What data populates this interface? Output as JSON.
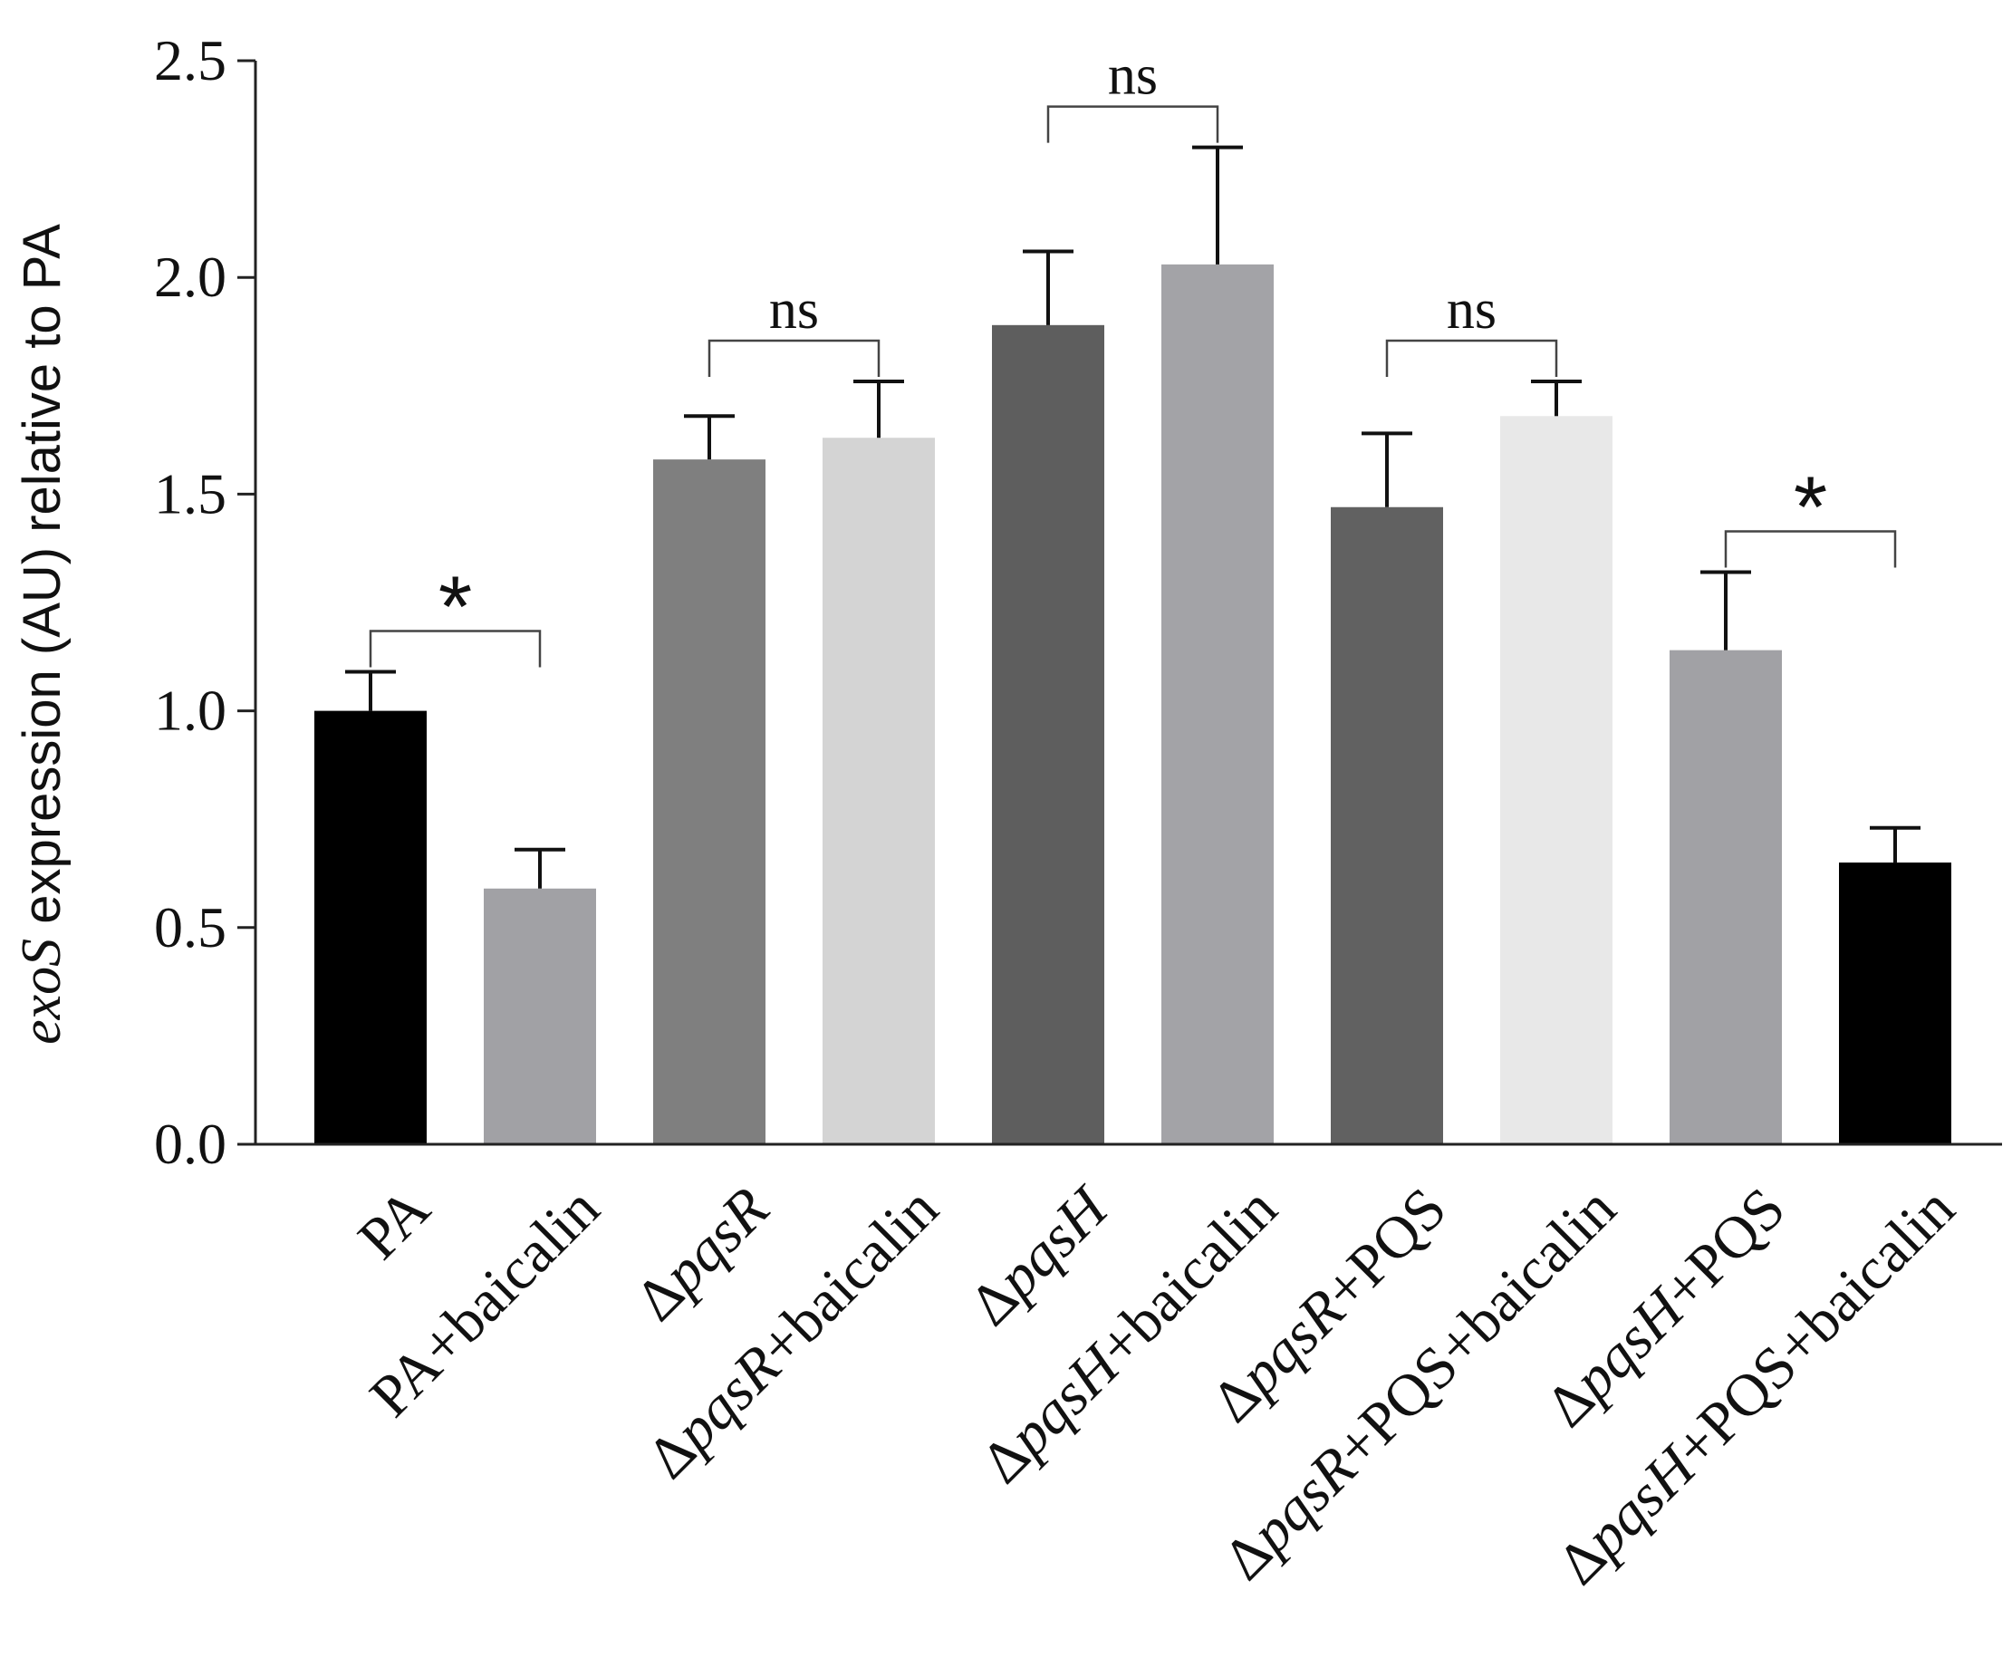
{
  "chart_data": {
    "type": "bar",
    "title": "",
    "xlabel": "",
    "ylabel": {
      "italic": "exoS",
      "rest": " expression (AU) relative to PA"
    },
    "ylim": [
      0,
      2.5
    ],
    "yticks": [
      "0.0",
      "0.5",
      "1.0",
      "1.5",
      "2.0",
      "2.5"
    ],
    "ytick_values": [
      0,
      0.5,
      1.0,
      1.5,
      2.0,
      2.5
    ],
    "categories": [
      "PA",
      "PA+baicalin",
      "ΔpqsR",
      "ΔpqsR+baicalin",
      "ΔpqsH",
      "ΔpqsH+baicalin",
      "ΔpqsR+PQS",
      "ΔpqsR+PQS+baicalin",
      "ΔpqsH+PQS",
      "ΔpqsH+PQS+baicalin"
    ],
    "category_parts": [
      [
        {
          "t": "PA",
          "i": false
        }
      ],
      [
        {
          "t": "PA+baicalin",
          "i": false
        }
      ],
      [
        {
          "t": "Δ",
          "i": false
        },
        {
          "t": "pqsR",
          "i": true
        }
      ],
      [
        {
          "t": "Δ",
          "i": false
        },
        {
          "t": "pqsR",
          "i": true
        },
        {
          "t": "+baicalin",
          "i": false
        }
      ],
      [
        {
          "t": "Δ",
          "i": false
        },
        {
          "t": "pqsH",
          "i": true
        }
      ],
      [
        {
          "t": "Δ",
          "i": false
        },
        {
          "t": "pqsH",
          "i": true
        },
        {
          "t": "+baicalin",
          "i": false
        }
      ],
      [
        {
          "t": "Δ",
          "i": false
        },
        {
          "t": "pqsR",
          "i": true
        },
        {
          "t": "+PQS",
          "i": false
        }
      ],
      [
        {
          "t": "Δ",
          "i": false
        },
        {
          "t": "pqsR",
          "i": true
        },
        {
          "t": "+PQS+baicalin",
          "i": false
        }
      ],
      [
        {
          "t": "Δ",
          "i": false
        },
        {
          "t": "pqsH",
          "i": true
        },
        {
          "t": "+PQS",
          "i": false
        }
      ],
      [
        {
          "t": "Δ",
          "i": false
        },
        {
          "t": "pqsH",
          "i": true
        },
        {
          "t": "+PQS+baicalin",
          "i": false
        }
      ]
    ],
    "values": [
      1.0,
      0.59,
      1.58,
      1.63,
      1.89,
      2.03,
      1.47,
      1.68,
      1.14,
      0.65
    ],
    "errors": [
      0.09,
      0.09,
      0.1,
      0.13,
      0.17,
      0.27,
      0.17,
      0.08,
      0.18,
      0.08
    ],
    "colors": [
      "#000000",
      "#a1a1a5",
      "#7f7f7f",
      "#d4d4d4",
      "#5e5e5e",
      "#a3a3a7",
      "#616161",
      "#e8e8e8",
      "#a1a1a5",
      "#000000"
    ],
    "comparisons": [
      {
        "from": 0,
        "to": 1,
        "label": "*"
      },
      {
        "from": 2,
        "to": 3,
        "label": "ns"
      },
      {
        "from": 4,
        "to": 5,
        "label": "ns"
      },
      {
        "from": 6,
        "to": 7,
        "label": "ns"
      },
      {
        "from": 8,
        "to": 9,
        "label": "*"
      }
    ]
  }
}
